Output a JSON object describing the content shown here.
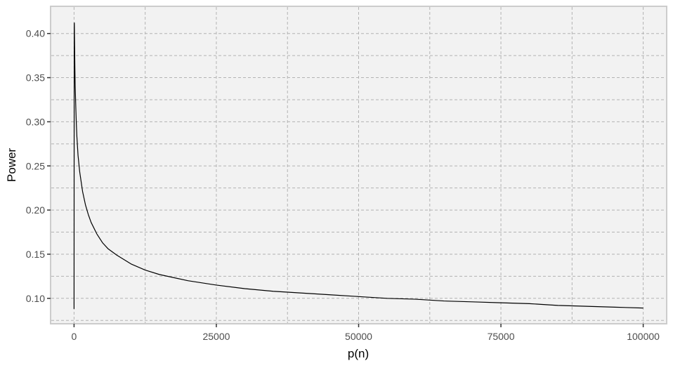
{
  "chart_data": {
    "type": "line",
    "title": "",
    "xlabel": "p(n)",
    "ylabel": "Power",
    "xlim": [
      -4000,
      104000
    ],
    "ylim": [
      0.072,
      0.43
    ],
    "xticks": [
      0,
      25000,
      50000,
      75000,
      100000
    ],
    "xtick_labels": [
      "0",
      "25000",
      "50000",
      "75000",
      "100000"
    ],
    "yticks": [
      0.1,
      0.15,
      0.2,
      0.25,
      0.3,
      0.35,
      0.4
    ],
    "ytick_labels": [
      "0.10",
      "0.15",
      "0.20",
      "0.25",
      "0.30",
      "0.35",
      "0.40"
    ],
    "x_minor_gridlines": [
      12500,
      37500,
      62500,
      87500
    ],
    "y_minor_gridlines": [
      0.075,
      0.125,
      0.175,
      0.225,
      0.275,
      0.325,
      0.375
    ],
    "grid": true,
    "grid_style": "dashed",
    "panel_background": "#f2f2f2",
    "panel_border": "#cccccc",
    "line_color": "#000000",
    "series": [
      {
        "x": [
          0,
          30,
          50,
          80,
          100,
          150,
          200,
          300,
          400,
          500,
          700,
          1000,
          1500,
          2000,
          2500,
          3000,
          4000,
          5000,
          6000,
          7500,
          10000,
          12500,
          15000,
          20000,
          25000,
          30000,
          35000,
          40000,
          45000,
          50000,
          55000,
          60000,
          65000,
          70000,
          75000,
          80000,
          85000,
          90000,
          95000,
          100000
        ],
        "y": [
          0.088,
          0.41,
          0.412,
          0.395,
          0.385,
          0.36,
          0.34,
          0.318,
          0.298,
          0.283,
          0.262,
          0.243,
          0.221,
          0.206,
          0.195,
          0.186,
          0.173,
          0.163,
          0.156,
          0.149,
          0.139,
          0.132,
          0.127,
          0.12,
          0.115,
          0.111,
          0.108,
          0.106,
          0.104,
          0.102,
          0.1,
          0.099,
          0.097,
          0.096,
          0.095,
          0.094,
          0.092,
          0.091,
          0.09,
          0.089
        ]
      }
    ]
  }
}
